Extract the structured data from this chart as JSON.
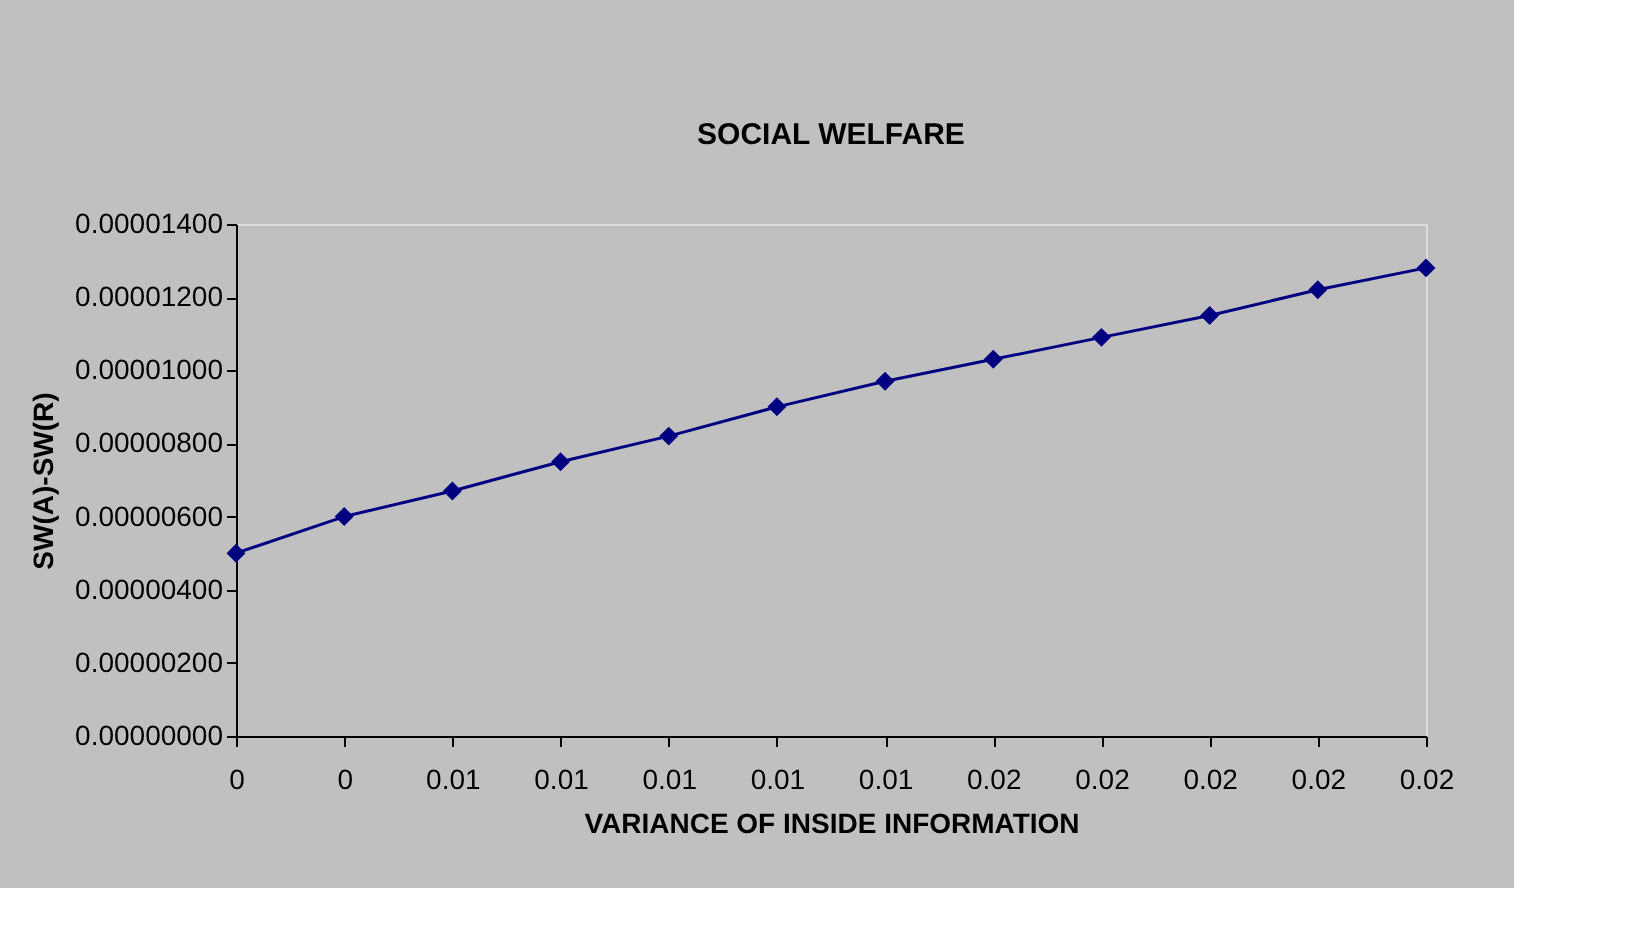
{
  "chart_data": {
    "type": "line",
    "title": "SOCIAL WELFARE",
    "xlabel": "VARIANCE OF INSIDE INFORMATION",
    "ylabel": "SW(A)-SW(R)",
    "categories": [
      "0",
      "0",
      "0.01",
      "0.01",
      "0.01",
      "0.01",
      "0.01",
      "0.02",
      "0.02",
      "0.02",
      "0.02",
      "0.02"
    ],
    "series": [
      {
        "color": "#000080",
        "values": [
          5e-06,
          6e-06,
          6.7e-06,
          7.5e-06,
          8.2e-06,
          9e-06,
          9.7e-06,
          1.03e-05,
          1.09e-05,
          1.15e-05,
          1.22e-05,
          1.28e-05
        ]
      }
    ],
    "ylim": [
      0,
      1.4e-05
    ],
    "yticks": [
      {
        "value": 0,
        "label": "0.00000000"
      },
      {
        "value": 2e-06,
        "label": "0.00000200"
      },
      {
        "value": 4e-06,
        "label": "0.00000400"
      },
      {
        "value": 6e-06,
        "label": "0.00000600"
      },
      {
        "value": 8e-06,
        "label": "0.00000800"
      },
      {
        "value": 1e-05,
        "label": "0.00001000"
      },
      {
        "value": 1.2e-05,
        "label": "0.00001200"
      },
      {
        "value": 1.4e-05,
        "label": "0.00001400"
      }
    ],
    "grid": false,
    "marker": "diamond",
    "line_style": "solid"
  }
}
